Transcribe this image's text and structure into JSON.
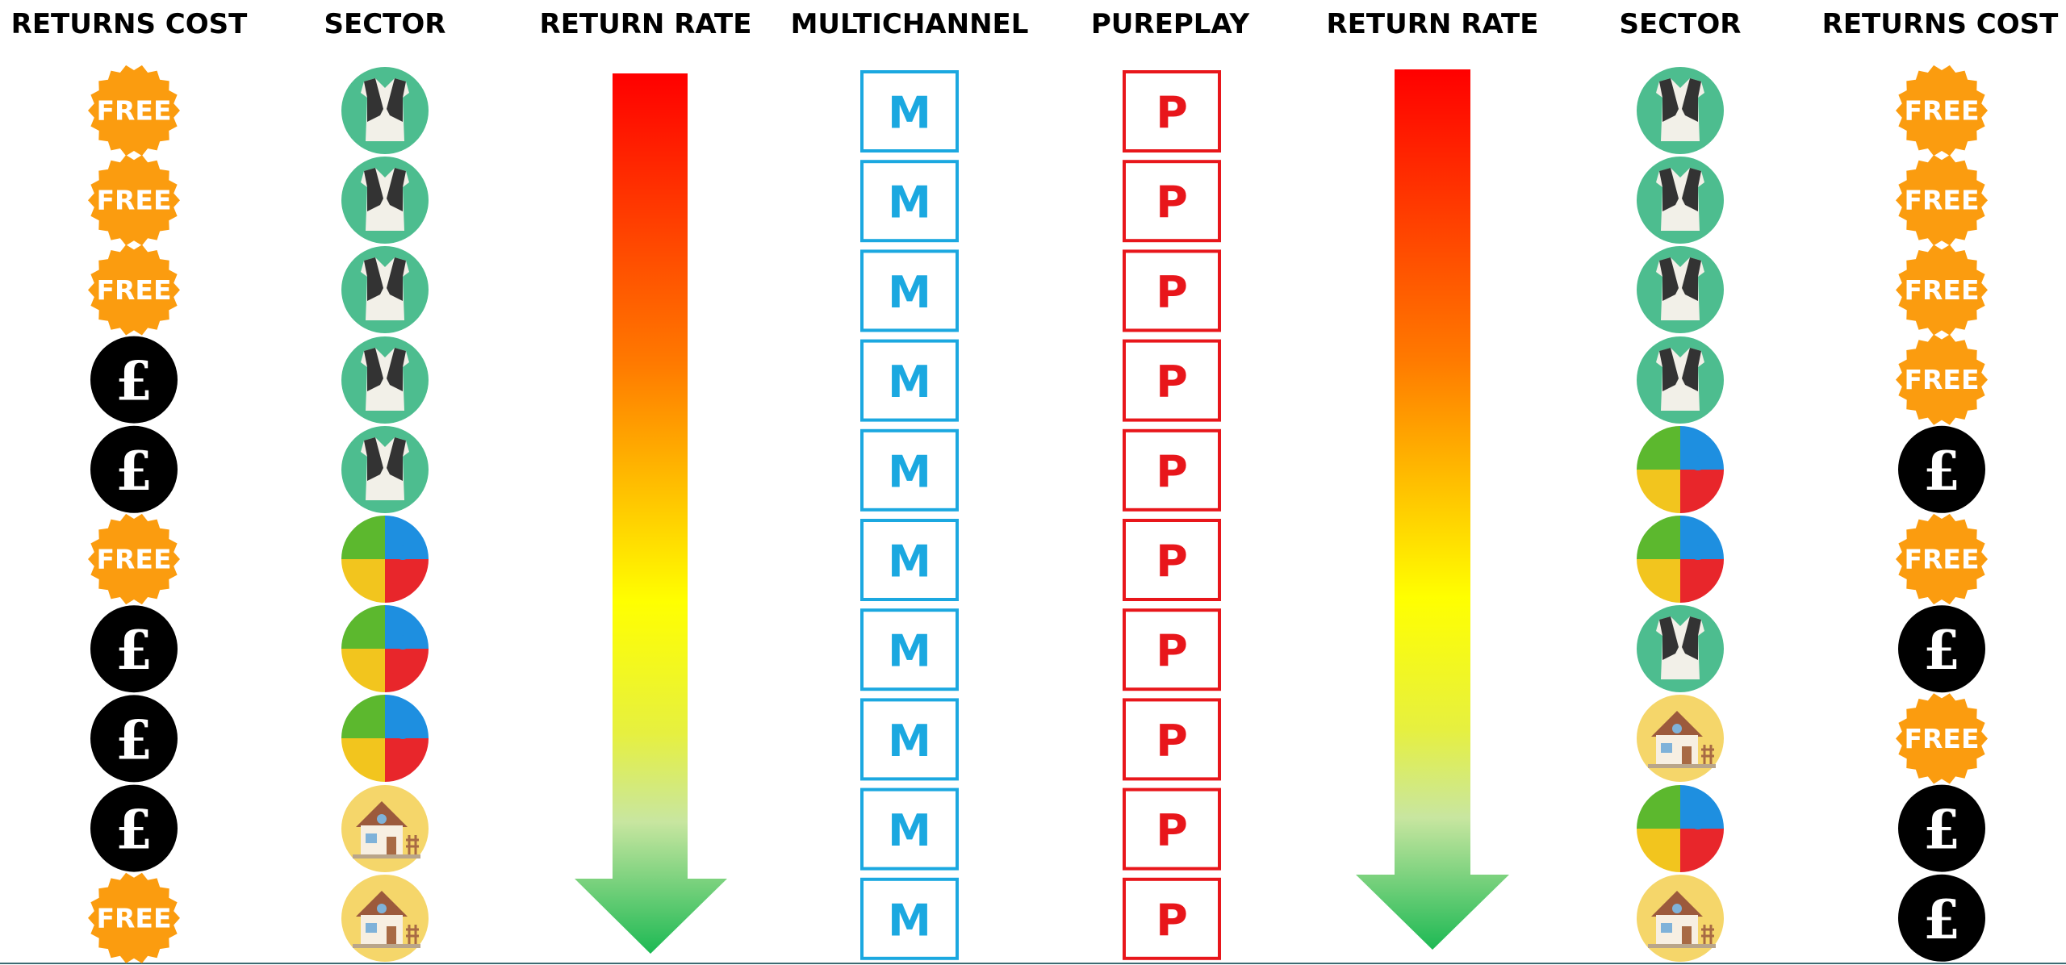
{
  "headers": [
    "RETURNS COST",
    "SECTOR",
    "RETURN RATE",
    "MULTICHANNEL",
    "PUREPLAY",
    "RETURN RATE",
    "SECTOR",
    "RETURNS COST"
  ],
  "left_returns_cost": [
    "FREE",
    "FREE",
    "FREE",
    "£",
    "£",
    "FREE",
    "£",
    "£",
    "£",
    "FREE"
  ],
  "multichannel": [
    "M",
    "M",
    "M",
    "M",
    "M",
    "M",
    "M",
    "M",
    "M",
    "M"
  ],
  "pureplay": [
    "P",
    "P",
    "P",
    "P",
    "P",
    "P",
    "P",
    "P",
    "P",
    "P"
  ],
  "right_returns_cost": [
    "FREE",
    "FREE",
    "FREE",
    "FREE",
    "£",
    "FREE",
    "£",
    "FREE",
    "£",
    "£"
  ]
}
